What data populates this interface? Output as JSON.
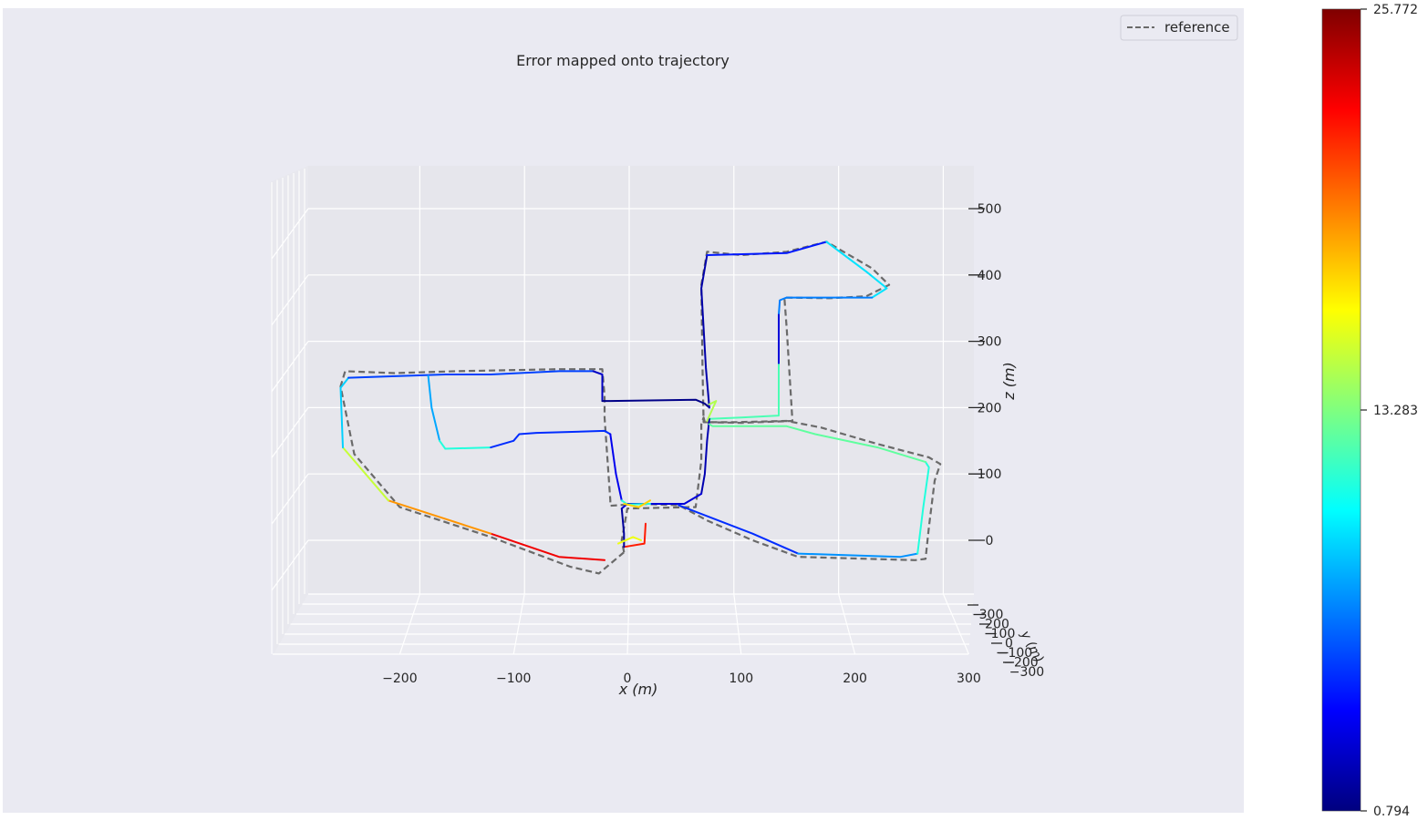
{
  "chart_data": {
    "type": "line",
    "title": "Error mapped onto trajectory",
    "xlabel": "x (m)",
    "ylabel": "y (m)",
    "zlabel": "z (m)",
    "x_ticks": [
      -200,
      -100,
      0,
      100,
      200,
      300
    ],
    "y_ticks": [
      300,
      200,
      100,
      0,
      -100,
      -200,
      -300
    ],
    "z_ticks": [
      0,
      100,
      200,
      300,
      400,
      500
    ],
    "x_tick_labels": [
      "−200",
      "−100",
      "0",
      "100",
      "200",
      "300"
    ],
    "y_tick_labels": [
      "300",
      "200",
      "100",
      "0",
      "−100",
      "−200",
      "−300"
    ],
    "z_tick_labels": [
      "0",
      "100",
      "200",
      "300",
      "400",
      "500"
    ],
    "xlim": [
      -300,
      300
    ],
    "zlim": [
      -80,
      600
    ],
    "grid": true,
    "legend": {
      "position": "top-right",
      "entries": [
        {
          "label": "reference",
          "style": "dashed",
          "color": "#6a6a6a"
        }
      ]
    },
    "colorbar": {
      "min": 0.794,
      "max": 25.772,
      "colormap": "jet",
      "tick_values": [
        0.794,
        13.283,
        25.772
      ],
      "tick_labels": [
        "0.794",
        "13.283",
        "25.772"
      ]
    },
    "series": [
      {
        "name": "reference",
        "style": "dashed",
        "color": "#6a6a6a",
        "points": [
          [
            -3,
            -18
          ],
          [
            -25,
            -50
          ],
          [
            -50,
            -40
          ],
          [
            -120,
            5
          ],
          [
            -200,
            50
          ],
          [
            -240,
            130
          ],
          [
            -252,
            232
          ],
          [
            -248,
            255
          ],
          [
            -205,
            252
          ],
          [
            -150,
            255
          ],
          [
            -60,
            258
          ],
          [
            -30,
            258
          ],
          [
            -22,
            258
          ],
          [
            -20,
            218
          ],
          [
            -20,
            185
          ],
          [
            -15,
            60
          ],
          [
            -15,
            52
          ],
          [
            10,
            55
          ],
          [
            45,
            53
          ],
          [
            70,
            30
          ],
          [
            110,
            0
          ],
          [
            150,
            -25
          ],
          [
            253,
            -30
          ],
          [
            262,
            -28
          ],
          [
            265,
            20
          ],
          [
            270,
            90
          ],
          [
            275,
            115
          ],
          [
            265,
            125
          ],
          [
            220,
            145
          ],
          [
            170,
            170
          ],
          [
            140,
            180
          ],
          [
            93,
            178
          ],
          [
            67,
            178
          ],
          [
            66,
            260
          ],
          [
            65,
            385
          ],
          [
            70,
            435
          ],
          [
            100,
            430
          ],
          [
            140,
            435
          ],
          [
            175,
            450
          ],
          [
            215,
            410
          ],
          [
            230,
            385
          ],
          [
            210,
            368
          ],
          [
            178,
            365
          ],
          [
            138,
            366
          ],
          [
            140,
            320
          ],
          [
            145,
            180
          ],
          [
            100,
            177
          ],
          [
            68,
            178
          ],
          [
            67,
            185
          ],
          [
            65,
            175
          ],
          [
            65,
            120
          ],
          [
            60,
            50
          ],
          [
            55,
            50
          ],
          [
            0,
            48
          ],
          [
            -5,
            0
          ],
          [
            -3,
            -18
          ]
        ]
      },
      {
        "name": "",
        "style": "colored",
        "segments": [
          {
            "error": 22.0,
            "points": [
              [
                -3,
                -10
              ],
              [
                15,
                -5
              ],
              [
                16,
                25
              ]
            ]
          },
          {
            "error": 23.0,
            "points": [
              [
                -20,
                -30
              ],
              [
                -60,
                -25
              ],
              [
                -120,
                10
              ]
            ]
          },
          {
            "error": 19.0,
            "points": [
              [
                -120,
                10
              ],
              [
                -210,
                60
              ]
            ]
          },
          {
            "error": 15.0,
            "points": [
              [
                -210,
                60
              ],
              [
                -250,
                140
              ]
            ]
          },
          {
            "error": 9.0,
            "points": [
              [
                -250,
                140
              ],
              [
                -252,
                230
              ],
              [
                -245,
                245
              ]
            ]
          },
          {
            "error": 5.5,
            "points": [
              [
                -245,
                245
              ],
              [
                -160,
                250
              ],
              [
                -120,
                250
              ],
              [
                -60,
                255
              ],
              [
                -30,
                255
              ]
            ]
          },
          {
            "error": 2.5,
            "points": [
              [
                -30,
                255
              ],
              [
                -22,
                250
              ],
              [
                -22,
                210
              ]
            ]
          },
          {
            "error": 1.0,
            "points": [
              [
                -22,
                210
              ],
              [
                -15,
                210
              ],
              [
                60,
                212
              ],
              [
                68,
                206
              ],
              [
                72,
                200
              ]
            ]
          },
          {
            "error": 1.8,
            "points": [
              [
                72,
                200
              ],
              [
                69,
                260
              ],
              [
                65,
                380
              ],
              [
                70,
                430
              ]
            ]
          },
          {
            "error": 4.5,
            "points": [
              [
                70,
                430
              ],
              [
                140,
                433
              ],
              [
                175,
                450
              ]
            ]
          },
          {
            "error": 9.5,
            "points": [
              [
                175,
                450
              ],
              [
                210,
                405
              ],
              [
                228,
                380
              ],
              [
                215,
                366
              ]
            ]
          },
          {
            "error": 7.0,
            "points": [
              [
                215,
                366
              ],
              [
                140,
                366
              ],
              [
                134,
                362
              ],
              [
                133,
                340
              ]
            ]
          },
          {
            "error": 3.0,
            "points": [
              [
                133,
                340
              ],
              [
                133,
                300
              ],
              [
                133,
                265
              ]
            ]
          },
          {
            "error": 12.0,
            "points": [
              [
                133,
                265
              ],
              [
                133,
                188
              ],
              [
                100,
                185
              ],
              [
                72,
                183
              ]
            ]
          },
          {
            "error": 2.0,
            "points": [
              [
                72,
                183
              ],
              [
                70,
                150
              ],
              [
                68,
                100
              ],
              [
                65,
                70
              ]
            ]
          },
          {
            "error": 3.0,
            "points": [
              [
                65,
                70
              ],
              [
                50,
                55
              ],
              [
                0,
                55
              ],
              [
                -5,
                48
              ]
            ]
          },
          {
            "error": 1.5,
            "points": [
              [
                -5,
                48
              ],
              [
                -3,
                10
              ],
              [
                -3,
                -10
              ]
            ]
          },
          {
            "error": 5.0,
            "points": [
              [
                45,
                53
              ],
              [
                110,
                10
              ],
              [
                150,
                -20
              ]
            ]
          },
          {
            "error": 7.5,
            "points": [
              [
                150,
                -20
              ],
              [
                240,
                -25
              ],
              [
                255,
                -20
              ]
            ]
          },
          {
            "error": 11.0,
            "points": [
              [
                255,
                -20
              ],
              [
                260,
                50
              ],
              [
                265,
                110
              ],
              [
                262,
                118
              ]
            ]
          },
          {
            "error": 12.5,
            "points": [
              [
                262,
                118
              ],
              [
                220,
                140
              ],
              [
                165,
                160
              ],
              [
                140,
                172
              ],
              [
                75,
                172
              ],
              [
                72,
                175
              ]
            ]
          },
          {
            "error": 8.0,
            "points": [
              [
                -175,
                248
              ],
              [
                -172,
                200
              ],
              [
                -165,
                150
              ]
            ]
          },
          {
            "error": 11.0,
            "points": [
              [
                -165,
                150
              ],
              [
                -160,
                138
              ],
              [
                -120,
                140
              ]
            ]
          },
          {
            "error": 5.0,
            "points": [
              [
                -120,
                140
              ],
              [
                -100,
                150
              ],
              [
                -95,
                160
              ],
              [
                -80,
                162
              ],
              [
                -20,
                165
              ],
              [
                -15,
                160
              ]
            ]
          },
          {
            "error": 3.5,
            "points": [
              [
                -15,
                160
              ],
              [
                -10,
                100
              ],
              [
                -5,
                60
              ]
            ]
          },
          {
            "error": 11.0,
            "points": [
              [
                -5,
                60
              ],
              [
                0,
                54
              ],
              [
                20,
                55
              ]
            ]
          },
          {
            "error": 17.5,
            "points": [
              [
                -3,
                55
              ],
              [
                10,
                50
              ],
              [
                20,
                60
              ]
            ]
          },
          {
            "error": 16.0,
            "points": [
              [
                -8,
                -5
              ],
              [
                5,
                5
              ],
              [
                12,
                0
              ]
            ]
          },
          {
            "error": 14.5,
            "points": [
              [
                72,
                205
              ],
              [
                78,
                210
              ],
              [
                70,
                180
              ]
            ]
          }
        ]
      }
    ]
  }
}
